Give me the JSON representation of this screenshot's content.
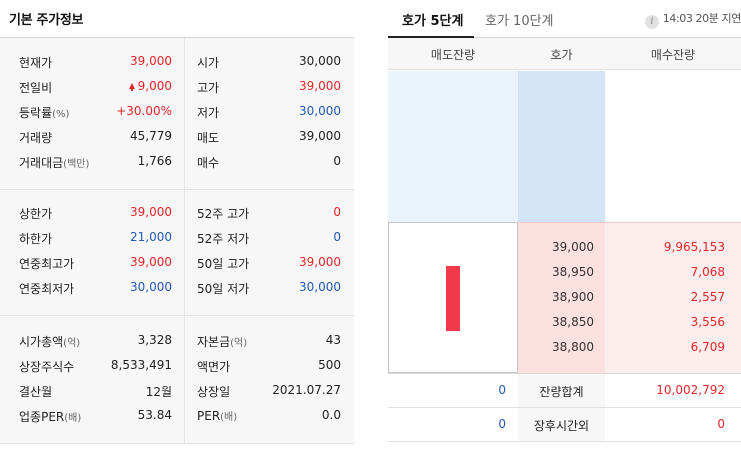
{
  "basic_info": {
    "title": "기본 주가정보",
    "section1": [
      {
        "label": "현재가",
        "unit": "",
        "value": "39,000",
        "label2": "시가",
        "unit2": "",
        "value2": "30,000"
      },
      {
        "label": "전일비",
        "unit": "",
        "value": "9,000",
        "label2": "고가",
        "unit2": "",
        "value2": "39,000"
      },
      {
        "label": "등락률",
        "unit": "(%)",
        "value": "+30.00%",
        "label2": "저가",
        "unit2": "",
        "value2": "30,000"
      },
      {
        "label": "거래량",
        "unit": "",
        "value": "45,779",
        "label2": "매도",
        "unit2": "",
        "value2": "39,000"
      },
      {
        "label": "거래대금",
        "unit": "(백만)",
        "value": "1,766",
        "label2": "매수",
        "unit2": "",
        "value2": "0"
      }
    ],
    "section2": [
      {
        "label": "상한가",
        "unit": "",
        "value": "39,000",
        "label2": "52주 고가",
        "unit2": "",
        "value2": "0"
      },
      {
        "label": "하한가",
        "unit": "",
        "value": "21,000",
        "label2": "52주 저가",
        "unit2": "",
        "value2": "0"
      },
      {
        "label": "연중최고가",
        "unit": "",
        "value": "39,000",
        "label2": "50일 고가",
        "unit2": "",
        "value2": "39,000"
      },
      {
        "label": "연중최저가",
        "unit": "",
        "value": "30,000",
        "label2": "50일 저가",
        "unit2": "",
        "value2": "30,000"
      }
    ],
    "section3": [
      {
        "label": "시가총액",
        "unit": "(억)",
        "value": "3,328",
        "label2": "자본금",
        "unit2": "(억)",
        "value2": "43"
      },
      {
        "label": "상장주식수",
        "unit": "",
        "value": "8,533,491",
        "label2": "액면가",
        "unit2": "",
        "value2": "500"
      },
      {
        "label": "결산월",
        "unit": "",
        "value": "12월",
        "label2": "상장일",
        "unit2": "",
        "value2": "2021.07.27"
      },
      {
        "label": "업종PER",
        "unit": "(배)",
        "value": "53.84",
        "label2": "PER",
        "unit2": "(배)",
        "value2": "0.0"
      }
    ]
  },
  "orderbook": {
    "tab_5": "호가 5단계",
    "tab_10": "호가 10단계",
    "delay_text": "14:03 20분 지연",
    "info_icon": "i",
    "col_sell": "매도잔량",
    "col_price": "호가",
    "col_buy": "매수잔량",
    "bids": [
      {
        "price": "39,000",
        "qty": "9,965,153"
      },
      {
        "price": "38,950",
        "qty": "7,068"
      },
      {
        "price": "38,900",
        "qty": "2,557"
      },
      {
        "price": "38,850",
        "qty": "3,556"
      },
      {
        "price": "38,800",
        "qty": "6,709"
      }
    ],
    "total_label": "잔량합계",
    "total_sell": "0",
    "total_buy": "10,002,792",
    "after_label": "장후시간외",
    "after_sell": "0",
    "after_buy": "0"
  },
  "colors": {
    "up": "#e5262b",
    "down": "#2459b6",
    "candle": "#f0394a"
  }
}
